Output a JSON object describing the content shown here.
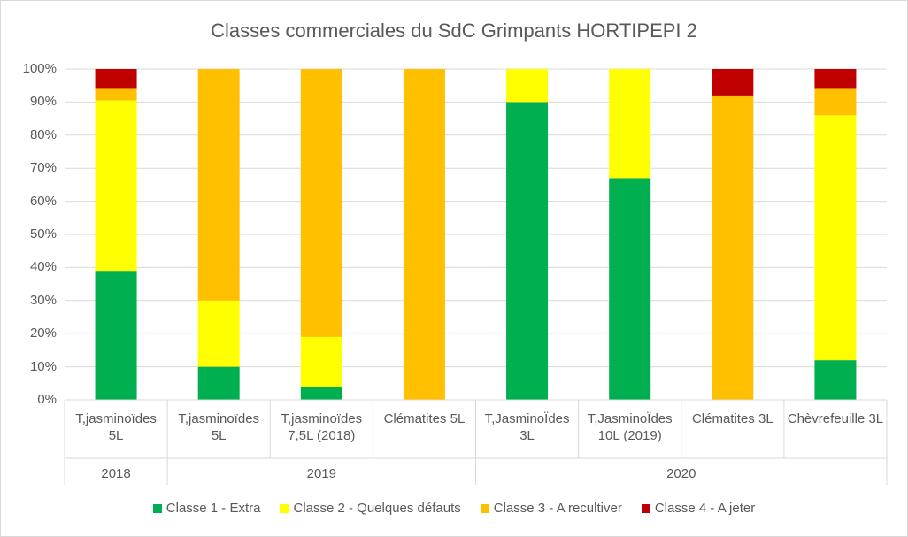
{
  "chart_data": {
    "type": "stacked_bar_100",
    "title": "Classes commerciales du SdC Grimpants HORTIPEPI 2",
    "groups": [
      {
        "name": "2018",
        "categories": [
          "T,jasminoïdes 5L"
        ]
      },
      {
        "name": "2019",
        "categories": [
          "T,jasminoïdes 5L",
          "T,jasminoïdes 7,5L (2018)",
          "Clématites 5L"
        ]
      },
      {
        "name": "2020",
        "categories": [
          "T,JasminoÏdes 3L",
          "T,JasminoÏdes 10L (2019)",
          "Clématites 3L",
          "Chèvrefeuille 3L"
        ]
      }
    ],
    "series": [
      {
        "name": "Classe 1 - Extra",
        "color": "#00b050",
        "values": [
          39,
          10,
          4,
          0,
          90,
          67,
          0,
          12
        ]
      },
      {
        "name": "Classe 2 - Quelques défauts",
        "color": "#ffff00",
        "values": [
          51.5,
          20,
          15,
          0,
          10,
          33,
          0,
          74
        ]
      },
      {
        "name": "Classe 3 - A recultiver",
        "color": "#ffc000",
        "values": [
          3.5,
          70,
          81,
          100,
          0,
          0,
          92,
          8
        ]
      },
      {
        "name": "Classe 4 - A jeter",
        "color": "#c00000",
        "values": [
          6,
          0,
          0,
          0,
          0,
          0,
          8,
          6
        ]
      }
    ],
    "ylim": [
      0,
      100
    ],
    "yticks": [
      {
        "value": 0,
        "label": "0%"
      },
      {
        "value": 10,
        "label": "10%"
      },
      {
        "value": 20,
        "label": "20%"
      },
      {
        "value": 30,
        "label": "30%"
      },
      {
        "value": 40,
        "label": "40%"
      },
      {
        "value": 50,
        "label": "50%"
      },
      {
        "value": 60,
        "label": "60%"
      },
      {
        "value": 70,
        "label": "70%"
      },
      {
        "value": 80,
        "label": "80%"
      },
      {
        "value": 90,
        "label": "90%"
      },
      {
        "value": 100,
        "label": "100%"
      }
    ],
    "grid": true
  }
}
